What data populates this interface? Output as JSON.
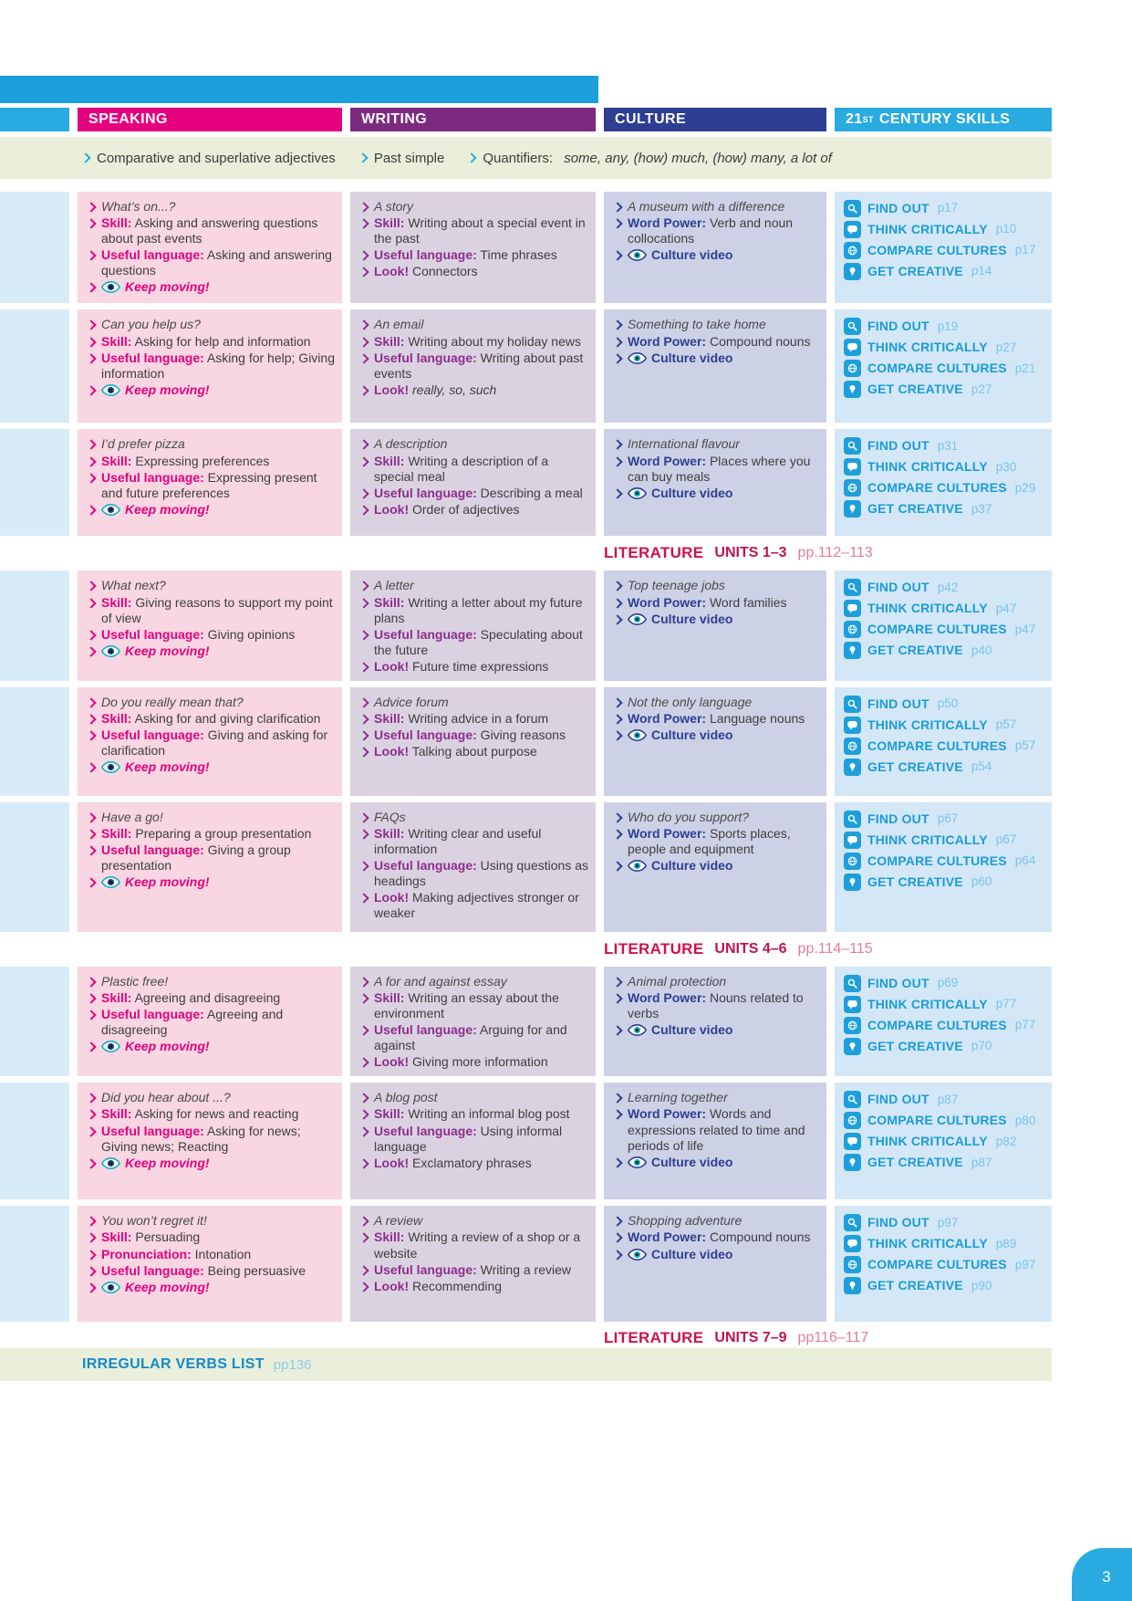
{
  "header": {
    "speaking": "SPEAKING",
    "writing": "WRITING",
    "culture": "CULTURE",
    "skills_num": "21",
    "skills_sup": "ST",
    "skills_rest": "CENTURY SKILLS"
  },
  "grammar_band": {
    "items": [
      {
        "text": "Comparative and superlative adjectives"
      },
      {
        "text": "Past simple"
      },
      {
        "text": "Quantifiers:",
        "italic": "some, any, (how) much, (how) many, a lot of"
      }
    ]
  },
  "labels": {
    "keep_moving": "Keep moving!",
    "culture_video": "Culture video"
  },
  "units": [
    {
      "speaking": {
        "title": "What’s on...?",
        "items": [
          {
            "label": "Skill:",
            "text": "Asking and answering questions about past events"
          },
          {
            "label": "Useful language:",
            "text": "Asking and answering questions"
          }
        ],
        "keep_moving": true
      },
      "writing": {
        "title": "A story",
        "items": [
          {
            "label": "Skill:",
            "text": "Writing about a special event in the past"
          },
          {
            "label": "Useful language:",
            "text": "Time phrases"
          },
          {
            "label": "Look!",
            "text": "Connectors"
          }
        ]
      },
      "culture": {
        "title": "A museum with a difference",
        "word_power": "Verb and noun collocations",
        "video": true
      },
      "skills": [
        {
          "icon": "search-icon",
          "label": "FIND OUT",
          "page": "p17"
        },
        {
          "icon": "speech-bubble-icon",
          "label": "THINK CRITICALLY",
          "page": "p10"
        },
        {
          "icon": "globe-icon",
          "label": "COMPARE CULTURES",
          "page": "p17"
        },
        {
          "icon": "lightbulb-icon",
          "label": "GET CREATIVE",
          "page": "p14"
        }
      ]
    },
    {
      "speaking": {
        "title": "Can you help us?",
        "items": [
          {
            "label": "Skill:",
            "text": "Asking for help and information"
          },
          {
            "label": "Useful language:",
            "text": "Asking for help; Giving information"
          }
        ],
        "keep_moving": true
      },
      "writing": {
        "title": "An email",
        "items": [
          {
            "label": "Skill:",
            "text": "Writing about my holiday news"
          },
          {
            "label": "Useful language:",
            "text": "Writing about past events"
          },
          {
            "label": "Look!",
            "text": "really, so, such",
            "italic": true
          }
        ]
      },
      "culture": {
        "title": "Something to take home",
        "word_power": "Compound nouns",
        "video": true
      },
      "skills": [
        {
          "icon": "search-icon",
          "label": "FIND OUT",
          "page": "p19"
        },
        {
          "icon": "speech-bubble-icon",
          "label": "THINK CRITICALLY",
          "page": "p27"
        },
        {
          "icon": "globe-icon",
          "label": "COMPARE CULTURES",
          "page": "p21"
        },
        {
          "icon": "lightbulb-icon",
          "label": "GET CREATIVE",
          "page": "p27"
        }
      ]
    },
    {
      "speaking": {
        "title": "I’d prefer pizza",
        "items": [
          {
            "label": "Skill:",
            "text": "Expressing preferences"
          },
          {
            "label": "Useful language:",
            "text": "Expressing present and future preferences"
          }
        ],
        "keep_moving": true
      },
      "writing": {
        "title": "A description",
        "items": [
          {
            "label": "Skill:",
            "text": "Writing a description of a special meal"
          },
          {
            "label": "Useful language:",
            "text": "Describing a meal"
          },
          {
            "label": "Look!",
            "text": "Order of adjectives"
          }
        ]
      },
      "culture": {
        "title": "International flavour",
        "word_power": "Places where you can buy meals",
        "video": true
      },
      "skills": [
        {
          "icon": "search-icon",
          "label": "FIND OUT",
          "page": "p31"
        },
        {
          "icon": "speech-bubble-icon",
          "label": "THINK CRITICALLY",
          "page": "p30"
        },
        {
          "icon": "globe-icon",
          "label": "COMPARE CULTURES",
          "page": "p29"
        },
        {
          "icon": "lightbulb-icon",
          "label": "GET CREATIVE",
          "page": "p37"
        }
      ]
    },
    {
      "speaking": {
        "title": "What next?",
        "items": [
          {
            "label": "Skill:",
            "text": "Giving reasons to support my point of view"
          },
          {
            "label": "Useful language:",
            "text": "Giving opinions"
          }
        ],
        "keep_moving": true
      },
      "writing": {
        "title": "A letter",
        "items": [
          {
            "label": "Skill:",
            "text": "Writing a letter about my future plans"
          },
          {
            "label": "Useful language:",
            "text": "Speculating about the future"
          },
          {
            "label": "Look!",
            "text": "Future time expressions"
          }
        ]
      },
      "culture": {
        "title": "Top teenage jobs",
        "word_power": "Word families",
        "video": true
      },
      "skills": [
        {
          "icon": "search-icon",
          "label": "FIND OUT",
          "page": "p42"
        },
        {
          "icon": "speech-bubble-icon",
          "label": "THINK CRITICALLY",
          "page": "p47"
        },
        {
          "icon": "globe-icon",
          "label": "COMPARE CULTURES",
          "page": "p47"
        },
        {
          "icon": "lightbulb-icon",
          "label": "GET CREATIVE",
          "page": "p40"
        }
      ]
    },
    {
      "speaking": {
        "title": "Do you really mean that?",
        "items": [
          {
            "label": "Skill:",
            "text": "Asking for and giving clarification"
          },
          {
            "label": "Useful language:",
            "text": "Giving and asking for clarification"
          }
        ],
        "keep_moving": true
      },
      "writing": {
        "title": "Advice forum",
        "items": [
          {
            "label": "Skill:",
            "text": "Writing advice in a forum"
          },
          {
            "label": "Useful language:",
            "text": "Giving reasons"
          },
          {
            "label": "Look!",
            "text": "Talking about purpose"
          }
        ]
      },
      "culture": {
        "title": "Not the only language",
        "word_power": "Language nouns",
        "video": true
      },
      "skills": [
        {
          "icon": "search-icon",
          "label": "FIND OUT",
          "page": "p50"
        },
        {
          "icon": "speech-bubble-icon",
          "label": "THINK CRITICALLY",
          "page": "p57"
        },
        {
          "icon": "globe-icon",
          "label": "COMPARE CULTURES",
          "page": "p57"
        },
        {
          "icon": "lightbulb-icon",
          "label": "GET CREATIVE",
          "page": "p54"
        }
      ]
    },
    {
      "speaking": {
        "title": "Have a go!",
        "items": [
          {
            "label": "Skill:",
            "text": "Preparing a group presentation"
          },
          {
            "label": "Useful language:",
            "text": "Giving a group presentation"
          }
        ],
        "keep_moving": true
      },
      "writing": {
        "title": "FAQs",
        "items": [
          {
            "label": "Skill:",
            "text": "Writing clear and useful information"
          },
          {
            "label": "Useful language:",
            "text": "Using questions as headings"
          },
          {
            "label": "Look!",
            "text": "Making adjectives stronger or weaker"
          }
        ]
      },
      "culture": {
        "title": "Who do you support?",
        "word_power": "Sports places, people and equipment",
        "video": true
      },
      "skills": [
        {
          "icon": "search-icon",
          "label": "FIND OUT",
          "page": "p67"
        },
        {
          "icon": "speech-bubble-icon",
          "label": "THINK CRITICALLY",
          "page": "p67"
        },
        {
          "icon": "globe-icon",
          "label": "COMPARE CULTURES",
          "page": "p64"
        },
        {
          "icon": "lightbulb-icon",
          "label": "GET CREATIVE",
          "page": "p60"
        }
      ]
    },
    {
      "speaking": {
        "title": "Plastic free!",
        "items": [
          {
            "label": "Skill:",
            "text": "Agreeing and disagreeing"
          },
          {
            "label": "Useful language:",
            "text": "Agreeing and disagreeing"
          }
        ],
        "keep_moving": true
      },
      "writing": {
        "title": "A for and against essay",
        "items": [
          {
            "label": "Skill:",
            "text": "Writing an essay about the environment"
          },
          {
            "label": "Useful language:",
            "text": "Arguing for and against"
          },
          {
            "label": "Look!",
            "text": "Giving more information"
          }
        ]
      },
      "culture": {
        "title": "Animal protection",
        "word_power": "Nouns related to verbs",
        "video": true
      },
      "skills": [
        {
          "icon": "search-icon",
          "label": "FIND OUT",
          "page": "p69"
        },
        {
          "icon": "speech-bubble-icon",
          "label": "THINK CRITICALLY",
          "page": "p77"
        },
        {
          "icon": "globe-icon",
          "label": "COMPARE CULTURES",
          "page": "p77"
        },
        {
          "icon": "lightbulb-icon",
          "label": "GET CREATIVE",
          "page": "p70"
        }
      ]
    },
    {
      "speaking": {
        "title": "Did you hear about ...?",
        "items": [
          {
            "label": "Skill:",
            "text": "Asking for news and reacting"
          },
          {
            "label": "Useful language:",
            "text": "Asking for news; Giving news; Reacting"
          }
        ],
        "keep_moving": true
      },
      "writing": {
        "title": "A blog post",
        "items": [
          {
            "label": "Skill:",
            "text": "Writing an informal blog post"
          },
          {
            "label": "Useful language:",
            "text": "Using informal language"
          },
          {
            "label": "Look!",
            "text": "Exclamatory phrases"
          }
        ]
      },
      "culture": {
        "title": "Learning together",
        "word_power": "Words and expressions related to time and periods of life",
        "video": true
      },
      "skills": [
        {
          "icon": "search-icon",
          "label": "FIND OUT",
          "page": "p87"
        },
        {
          "icon": "globe-icon",
          "label": "COMPARE CULTURES",
          "page": "p80"
        },
        {
          "icon": "speech-bubble-icon",
          "label": "THINK CRITICALLY",
          "page": "p82"
        },
        {
          "icon": "lightbulb-icon",
          "label": "GET CREATIVE",
          "page": "p87"
        }
      ]
    },
    {
      "speaking": {
        "title": "You won’t regret it!",
        "items": [
          {
            "label": "Skill:",
            "text": "Persuading"
          },
          {
            "label": "Pronunciation:",
            "text": "Intonation"
          },
          {
            "label": "Useful language:",
            "text": "Being persuasive"
          }
        ],
        "keep_moving": true
      },
      "writing": {
        "title": "A review",
        "items": [
          {
            "label": "Skill:",
            "text": "Writing a review of a shop or a website"
          },
          {
            "label": "Useful language:",
            "text": "Writing a review"
          },
          {
            "label": "Look!",
            "text": "Recommending"
          }
        ]
      },
      "culture": {
        "title": "Shopping adventure",
        "word_power": "Compound nouns",
        "video": true
      },
      "skills": [
        {
          "icon": "search-icon",
          "label": "FIND OUT",
          "page": "p97"
        },
        {
          "icon": "speech-bubble-icon",
          "label": "THINK CRITICALLY",
          "page": "p89"
        },
        {
          "icon": "globe-icon",
          "label": "COMPARE CULTURES",
          "page": "p97"
        },
        {
          "icon": "lightbulb-icon",
          "label": "GET CREATIVE",
          "page": "p90"
        }
      ]
    }
  ],
  "literature": [
    {
      "label": "LITERATURE",
      "units": "UNITS 1–3",
      "pages": "pp.112–113"
    },
    {
      "label": "LITERATURE",
      "units": "UNITS 4–6",
      "pages": "pp.114–115"
    },
    {
      "label": "LITERATURE",
      "units": "UNITS 7–9",
      "pages": "pp116–117"
    }
  ],
  "footer_band": {
    "title": "IRREGULAR VERBS LIST",
    "pages": "pp136"
  },
  "page_number": "3",
  "colors": {
    "speaking_accent": "#e5007d",
    "writing_accent": "#7c2a80",
    "culture_accent": "#2e3e92",
    "skills_accent": "#29abe2",
    "literature_red": "#d0114a",
    "band_green": "#e9efda"
  }
}
